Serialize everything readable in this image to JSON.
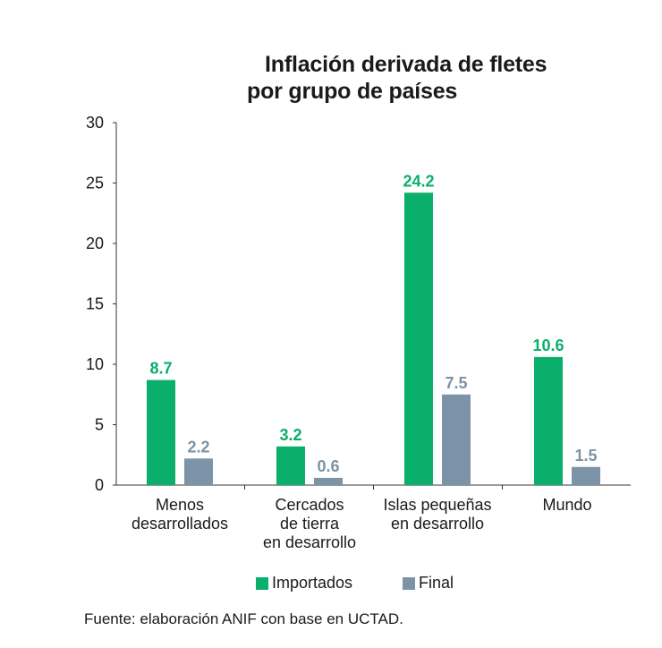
{
  "chart_data": {
    "type": "bar",
    "title": [
      "Inflación derivada de fletes",
      "por grupo de países"
    ],
    "categories": [
      [
        "Menos",
        "desarrollados"
      ],
      [
        "Cercados",
        "de tierra",
        "en desarrollo"
      ],
      [
        "Islas pequeñas",
        "en desarrollo"
      ],
      [
        "Mundo"
      ]
    ],
    "series": [
      {
        "name": "Importados",
        "color": "#0aaf6b",
        "label_color": "#0aaf6b",
        "values": [
          8.7,
          3.2,
          24.2,
          10.6
        ]
      },
      {
        "name": "Final",
        "color": "#7c93a8",
        "label_color": "#7c93a8",
        "values": [
          2.2,
          0.6,
          7.5,
          1.5
        ]
      }
    ],
    "ylim": [
      0,
      30
    ],
    "yticks": [
      0,
      5,
      10,
      15,
      20,
      25,
      30
    ],
    "grid": false,
    "legend_position": "bottom"
  },
  "source": "Fuente: elaboración ANIF con base en UCTAD."
}
